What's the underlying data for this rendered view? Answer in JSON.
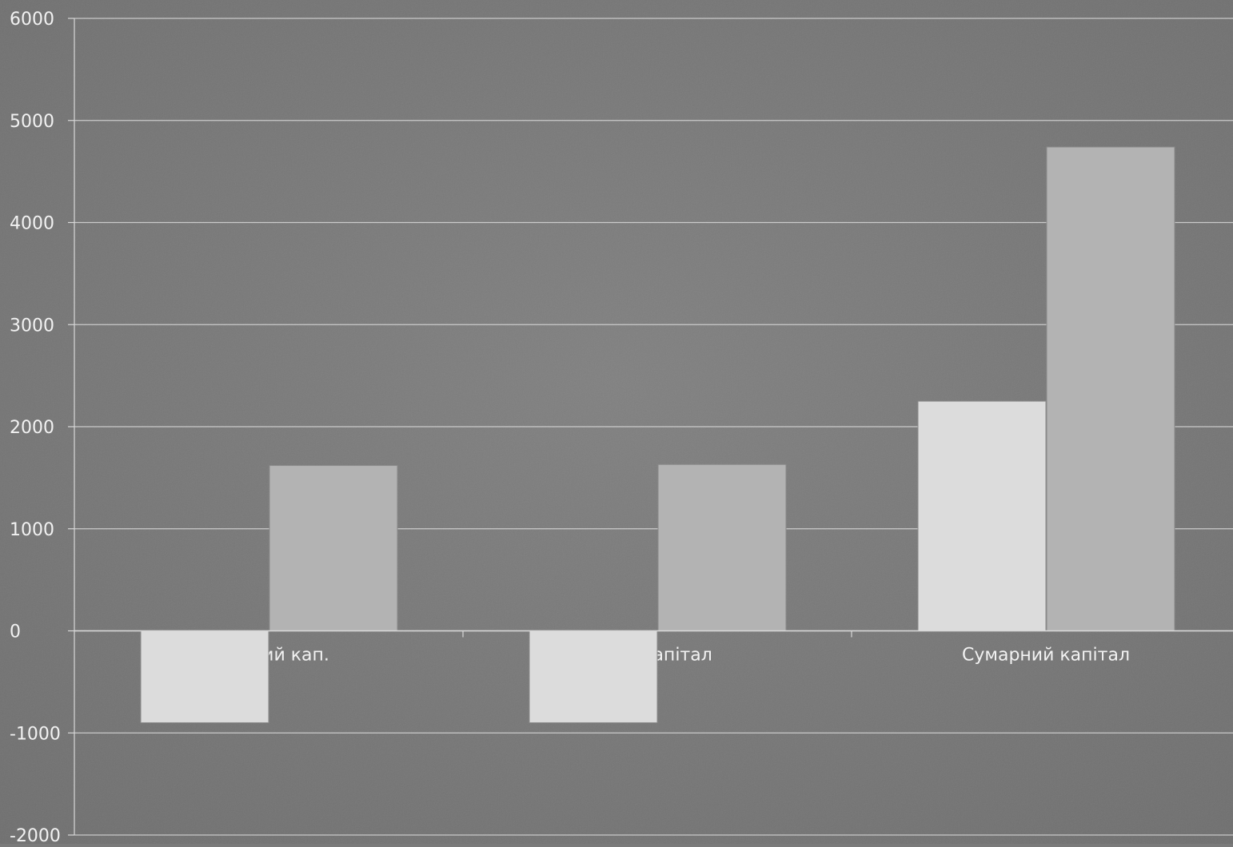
{
  "chart_data": {
    "type": "bar",
    "title": "",
    "xlabel": "",
    "ylabel": "",
    "ylim": [
      -2000,
      6000
    ],
    "yticks": [
      6000,
      5000,
      4000,
      3000,
      2000,
      1000,
      0,
      -1000,
      -2000
    ],
    "ytick_labels": [
      "6000",
      "5000",
      "4000",
      "3000",
      "2000",
      "1000",
      "0",
      "-1000",
      "-2000"
    ],
    "categories": [
      "оротний кап.",
      "ний капітал",
      "Сумарний капітал"
    ],
    "series": [
      {
        "values": [
          -900,
          -900,
          2250
        ]
      },
      {
        "values": [
          1620,
          1630,
          4740
        ]
      }
    ],
    "grid": true,
    "legend": "none",
    "colors": {
      "background": "#7a7a7a",
      "gridline": "#d8d8d8",
      "text": "#f2f2f2",
      "series": [
        "#dcdcdc",
        "#b3b3b3"
      ]
    }
  }
}
